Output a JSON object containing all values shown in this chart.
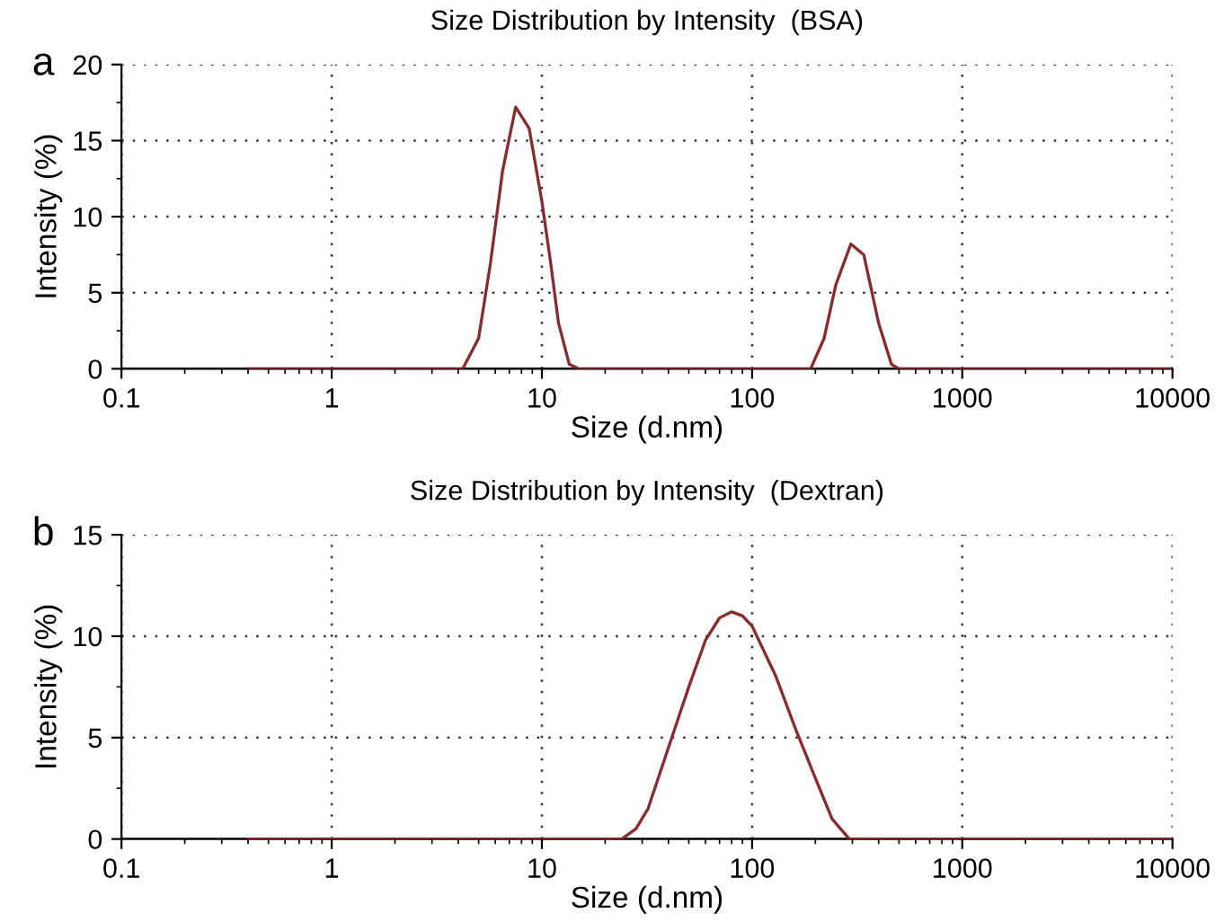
{
  "chart_data": [
    {
      "type": "line",
      "title": "Size Distribution by Intensity  (BSA)",
      "xlabel": "Size (d.nm)",
      "ylabel": "Intensity (%)",
      "annotations": [
        "a"
      ],
      "log": "x",
      "grid": true,
      "marker": "none",
      "line_style": "solid",
      "xlim": [
        0.1,
        10000
      ],
      "xticks": [
        0.1,
        1,
        10,
        100,
        1000,
        10000
      ],
      "ylim": [
        0,
        20
      ],
      "yticks": [
        0,
        5,
        10,
        15,
        20
      ],
      "series": [
        {
          "color": "#8b2a2a",
          "x": [
            0.4,
            4.2,
            5,
            5.7,
            6.5,
            7.5,
            8.7,
            10,
            11,
            12,
            13.5,
            15,
            190,
            220,
            250,
            295,
            340,
            400,
            460,
            500,
            10000
          ],
          "values": [
            0,
            0,
            2,
            7,
            13,
            17.2,
            15.8,
            11,
            7,
            3,
            0.3,
            0,
            0,
            2,
            5.5,
            8.2,
            7.5,
            3,
            0.3,
            0,
            0
          ]
        }
      ]
    },
    {
      "type": "line",
      "title": "Size Distribution by Intensity  (Dextran)",
      "xlabel": "Size (d.nm)",
      "ylabel": "Intensity (%)",
      "annotations": [
        "b"
      ],
      "log": "x",
      "grid": true,
      "marker": "none",
      "line_style": "solid",
      "xlim": [
        0.1,
        10000
      ],
      "xticks": [
        0.1,
        1,
        10,
        100,
        1000,
        10000
      ],
      "ylim": [
        0,
        15
      ],
      "yticks": [
        0,
        5,
        10,
        15
      ],
      "series": [
        {
          "color": "#8b2a2a",
          "x": [
            0.4,
            24,
            28,
            32,
            40,
            50,
            60,
            70,
            80,
            90,
            100,
            130,
            160,
            200,
            240,
            290,
            10000
          ],
          "values": [
            0,
            0,
            0.5,
            1.5,
            4.5,
            7.5,
            9.8,
            10.9,
            11.2,
            11,
            10.5,
            8,
            5.5,
            3,
            1,
            0,
            0
          ]
        }
      ]
    }
  ]
}
